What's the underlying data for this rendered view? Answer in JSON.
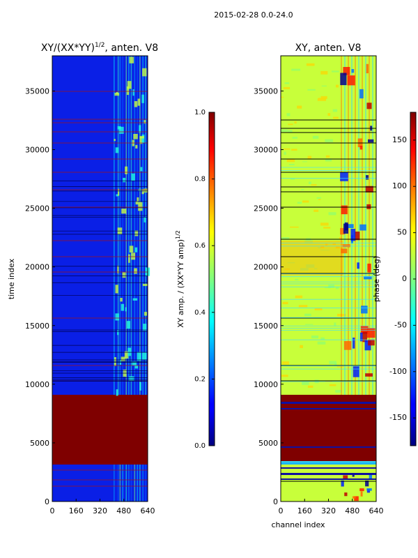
{
  "suptitle": "2015-02-28 0.0-24.0",
  "chart_data": [
    {
      "type": "heatmap",
      "title": "XY/(XX*YY)",
      "title_exp": "1/2",
      "title_suffix": ", anten. V8",
      "xlabel": "",
      "ylabel": "time index",
      "xlim": [
        0,
        640
      ],
      "ylim": [
        0,
        38000
      ],
      "xticks": [
        "0",
        "160",
        "320",
        "480",
        "640"
      ],
      "yticks": [
        "0",
        "5000",
        "10000",
        "15000",
        "20000",
        "25000",
        "30000",
        "35000"
      ],
      "colormap": "jet",
      "values_description": "normalized XY amplitude per channel and time index",
      "colorbar": {
        "label": "XY amp. / (XX*YY amp)",
        "label_exp": "1/2",
        "range": [
          0.0,
          1.0
        ],
        "ticks": [
          "0.0",
          "0.2",
          "0.4",
          "0.6",
          "0.8",
          "1.0"
        ]
      }
    },
    {
      "type": "heatmap",
      "title": "XY, anten. V8",
      "xlabel": "channel index",
      "ylabel": "",
      "xlim": [
        0,
        640
      ],
      "ylim": [
        0,
        38000
      ],
      "xticks": [
        "0",
        "160",
        "320",
        "480",
        "640"
      ],
      "yticks": [
        "0",
        "5000",
        "10000",
        "15000",
        "20000",
        "25000",
        "30000",
        "35000"
      ],
      "colormap": "jet",
      "values_description": "XY phase in degrees per channel and time index",
      "colorbar": {
        "label": "phase (deg)",
        "range": [
          -180,
          180
        ],
        "ticks": [
          "-150",
          "-100",
          "-50",
          "0",
          "50",
          "100",
          "150"
        ]
      }
    }
  ],
  "colors": {
    "jet_low": "#00007f",
    "jet_blue": "#0000ff",
    "jet_cyan": "#00ffff",
    "jet_yellow": "#ffff00",
    "jet_red": "#ff0000",
    "jet_high": "#7f0000"
  }
}
